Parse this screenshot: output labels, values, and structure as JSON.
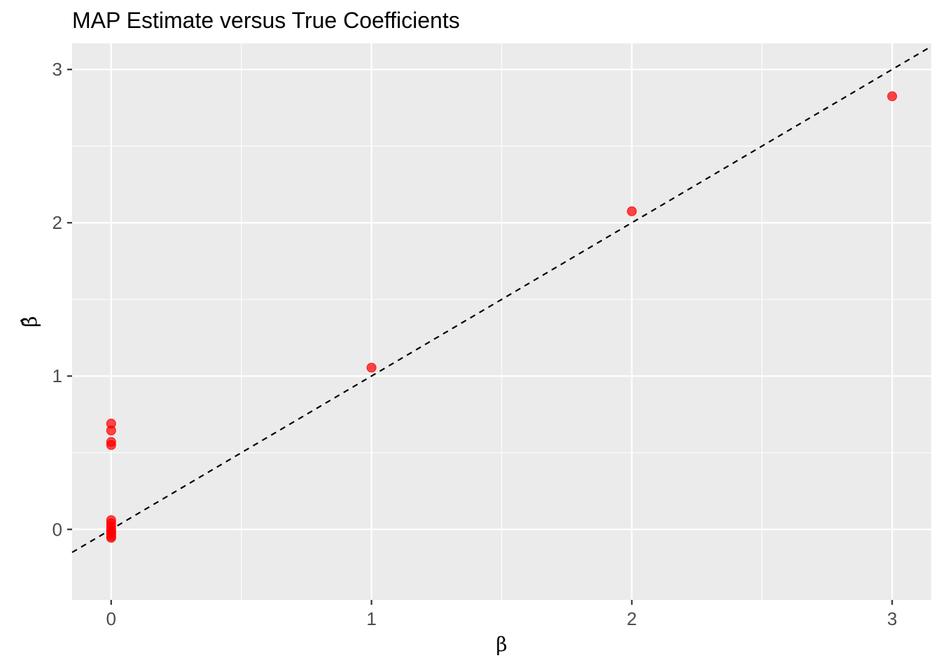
{
  "chart_data": {
    "type": "scatter",
    "title": "MAP Estimate versus True Coefficients",
    "xlabel": "β",
    "ylabel": "β̂",
    "xlim": [
      -0.15,
      3.15
    ],
    "ylim": [
      -0.46,
      3.17
    ],
    "x_ticks": [
      0,
      1,
      2,
      3
    ],
    "y_ticks": [
      0,
      1,
      2,
      3
    ],
    "x_tick_labels": [
      "0",
      "1",
      "2",
      "3"
    ],
    "y_tick_labels": [
      "0",
      "1",
      "2",
      "3"
    ],
    "grid": true,
    "reference_line": {
      "slope": 1,
      "intercept": 0,
      "style": "dashed",
      "color": "#000000"
    },
    "point_color": "#ff0000",
    "panel_background": "#ebebeb",
    "points": [
      {
        "x": 0,
        "y": 0.69
      },
      {
        "x": 0,
        "y": 0.645
      },
      {
        "x": 0,
        "y": 0.57
      },
      {
        "x": 0,
        "y": 0.55
      },
      {
        "x": 0,
        "y": 0.06
      },
      {
        "x": 0,
        "y": 0.04
      },
      {
        "x": 0,
        "y": 0.02
      },
      {
        "x": 0,
        "y": 0.0
      },
      {
        "x": 0,
        "y": -0.01
      },
      {
        "x": 0,
        "y": -0.02
      },
      {
        "x": 0,
        "y": -0.03
      },
      {
        "x": 0,
        "y": -0.045
      },
      {
        "x": 0,
        "y": -0.055
      },
      {
        "x": 1,
        "y": 1.055
      },
      {
        "x": 2,
        "y": 2.075
      },
      {
        "x": 3,
        "y": 2.825
      }
    ]
  }
}
